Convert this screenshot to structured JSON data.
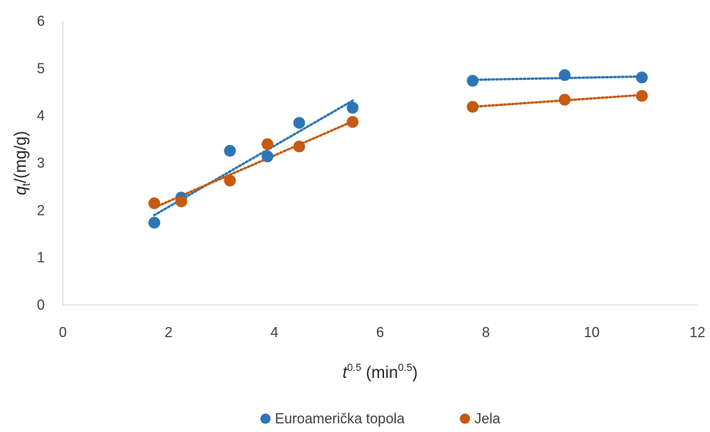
{
  "chart_data": {
    "type": "scatter",
    "xlim": [
      0,
      12
    ],
    "ylim": [
      0,
      6
    ],
    "x_ticks": [
      "0",
      "2",
      "4",
      "6",
      "8",
      "10",
      "12"
    ],
    "y_ticks": [
      "0",
      "1",
      "2",
      "3",
      "4",
      "5",
      "6"
    ],
    "grid": false,
    "legend_position": "bottom",
    "xlabel": {
      "var": "t",
      "sup": "0.5",
      "unit_prefix": "(min",
      "unit_sup": "0.5",
      "unit_suffix": ")"
    },
    "ylabel": {
      "var": "q",
      "sub": "t",
      "rest": "/(mg/g)"
    },
    "series": [
      {
        "name": "Euroamerička topola",
        "color": "#2E75B6",
        "points": [
          {
            "x": 1.73,
            "y": 1.74
          },
          {
            "x": 2.24,
            "y": 2.27
          },
          {
            "x": 3.16,
            "y": 3.26
          },
          {
            "x": 3.87,
            "y": 3.14
          },
          {
            "x": 4.47,
            "y": 3.85
          },
          {
            "x": 5.48,
            "y": 4.17
          },
          {
            "x": 7.75,
            "y": 4.74
          },
          {
            "x": 9.49,
            "y": 4.86
          },
          {
            "x": 10.95,
            "y": 4.81
          }
        ],
        "trendlines": [
          {
            "x": [
              1.73,
              5.48
            ],
            "y": [
              1.9,
              4.32
            ]
          },
          {
            "x": [
              7.75,
              10.95
            ],
            "y": [
              4.76,
              4.83
            ]
          }
        ]
      },
      {
        "name": "Jela",
        "color": "#C55A11",
        "points": [
          {
            "x": 1.73,
            "y": 2.15
          },
          {
            "x": 2.24,
            "y": 2.19
          },
          {
            "x": 3.16,
            "y": 2.63
          },
          {
            "x": 3.87,
            "y": 3.4
          },
          {
            "x": 4.47,
            "y": 3.35
          },
          {
            "x": 5.48,
            "y": 3.87
          },
          {
            "x": 7.75,
            "y": 4.19
          },
          {
            "x": 9.49,
            "y": 4.34
          },
          {
            "x": 10.95,
            "y": 4.42
          }
        ],
        "trendlines": [
          {
            "x": [
              1.73,
              5.48
            ],
            "y": [
              2.06,
              3.88
            ]
          },
          {
            "x": [
              7.75,
              10.95
            ],
            "y": [
              4.19,
              4.44
            ]
          }
        ]
      }
    ]
  }
}
